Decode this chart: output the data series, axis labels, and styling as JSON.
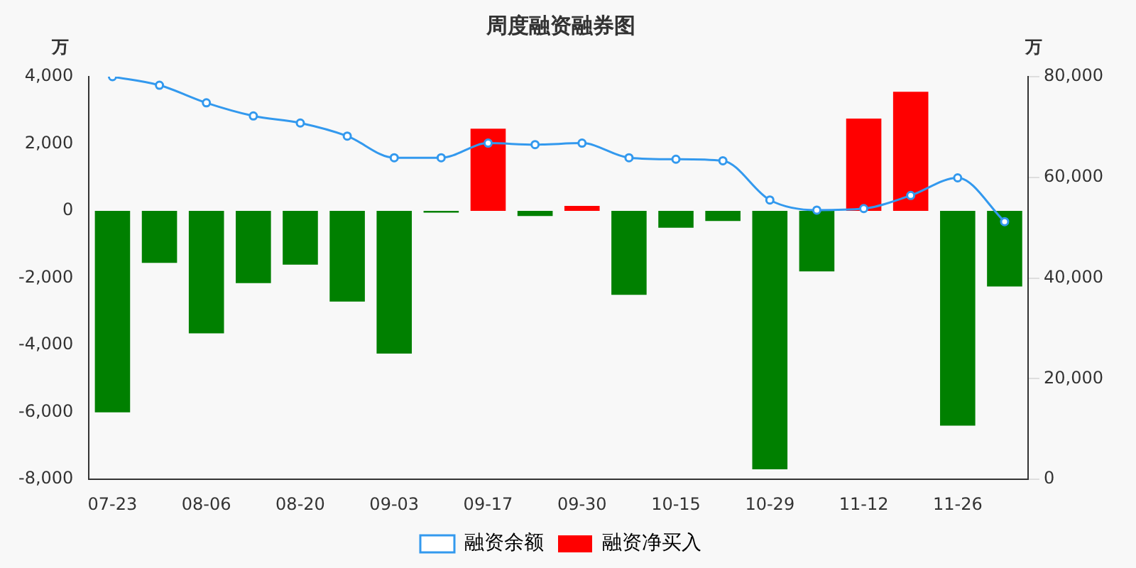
{
  "chart_data": {
    "type": "bar",
    "title": "周度融资融券图",
    "ylabel": "万",
    "y2label": "万",
    "categories": [
      "07-23",
      null,
      "08-06",
      null,
      "08-20",
      null,
      "09-03",
      null,
      "09-17",
      null,
      "09-30",
      null,
      "10-15",
      null,
      "10-29",
      null,
      "11-12",
      null,
      "11-26",
      null
    ],
    "series": [
      {
        "name": "融资余额",
        "type": "line",
        "axis": "y2",
        "color": "#3399ee",
        "marker": "circle",
        "values": [
          80000,
          78300,
          74800,
          72200,
          70800,
          68200,
          63900,
          63900,
          66800,
          66500,
          66800,
          63900,
          63600,
          63300,
          55500,
          53500,
          53800,
          56400,
          59900,
          51200
        ]
      },
      {
        "name": "融资净买入",
        "color": "#ff0000",
        "colors": [
          "#008000",
          "#008000",
          "#008000",
          "#008000",
          "#008000",
          "#008000",
          "#008000",
          "#008000",
          "#ff0000",
          "#008000",
          "#ff0000",
          "#008000",
          "#008000",
          "#008000",
          "#008000",
          "#008000",
          "#ff0000",
          "#ff0000",
          "#008000",
          "#008000"
        ],
        "values": [
          -6000,
          -1550,
          -3650,
          -2150,
          -1600,
          -2700,
          -4250,
          -50,
          2450,
          -150,
          150,
          -2500,
          -500,
          -300,
          -7700,
          -1800,
          2750,
          3550,
          -6400,
          -2250
        ]
      }
    ],
    "ylim": [
      -8000,
      4000
    ],
    "yticks": [
      {
        "value": -8000,
        "label": "-8,000"
      },
      {
        "value": -6000,
        "label": "-6,000"
      },
      {
        "value": -4000,
        "label": "-4,000"
      },
      {
        "value": -2000,
        "label": "-2,000"
      },
      0,
      {
        "value": 2000,
        "label": "2,000"
      },
      {
        "value": 4000,
        "label": "4,000"
      }
    ],
    "y2lim": [
      0,
      80000
    ],
    "y2ticks": [
      0,
      {
        "value": 20000,
        "label": "20,000"
      },
      {
        "value": 40000,
        "label": "40,000"
      },
      {
        "value": 60000,
        "label": "60,000"
      },
      {
        "value": 80000,
        "label": "80,000"
      }
    ],
    "grid": false,
    "legend": "bottom"
  }
}
